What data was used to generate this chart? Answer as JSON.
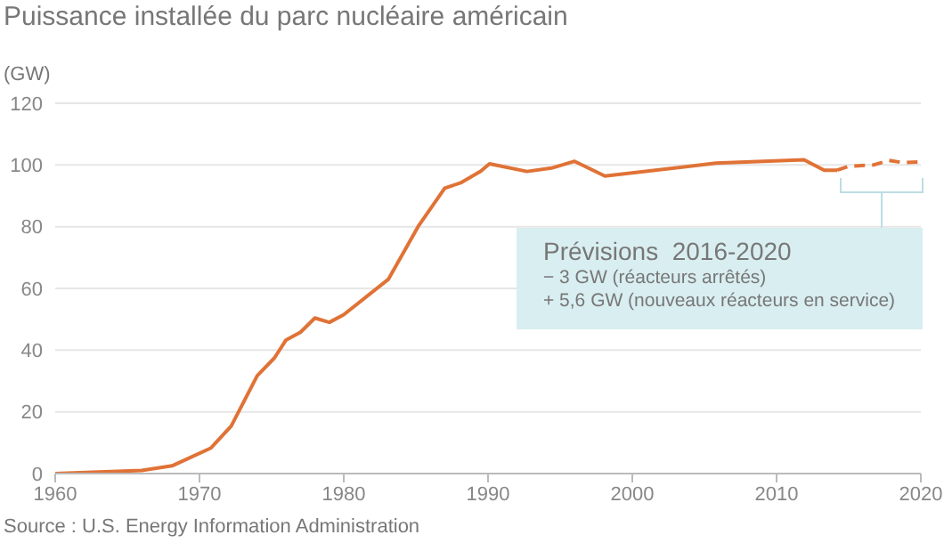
{
  "chart_data": {
    "type": "line",
    "title": "Puissance installée du parc nucléaire américain",
    "ylabel": "(GW)",
    "xlim": [
      1960,
      2020
    ],
    "xticks": [
      1960,
      1970,
      1980,
      1990,
      2000,
      2010,
      2020
    ],
    "ylim": [
      0,
      120
    ],
    "yticks": [
      0,
      20,
      40,
      60,
      80,
      100,
      120
    ],
    "grid": "y",
    "series": [
      {
        "color": "#e07236",
        "line_style": "solid",
        "x": [
          1960,
          1966,
          1968.1,
          1970.8,
          1972.2,
          1974,
          1975.2,
          1976,
          1977,
          1978,
          1979,
          1980,
          1983.1,
          1985.2,
          1987,
          1988.1,
          1989.5,
          1990.1,
          1992.7,
          1994.4,
          1996,
          1998.1,
          2005.8,
          2011.9,
          2013.3,
          2014.2
        ],
        "values": [
          0,
          1,
          2.5,
          8.3,
          15.4,
          31.7,
          37.5,
          43.3,
          45.8,
          50.4,
          49,
          51.5,
          63,
          80.4,
          92.5,
          94.2,
          98,
          100.4,
          97.9,
          99,
          101.2,
          96.4,
          100.6,
          101.7,
          98.3,
          98.3
        ]
      },
      {
        "color": "#e07236",
        "line_style": "dashed",
        "x": [
          2014.2,
          2015,
          2016.7,
          2017.8,
          2018.7,
          2020
        ],
        "values": [
          98.3,
          99.6,
          100,
          101.5,
          100.8,
          101
        ]
      }
    ],
    "annotations": [
      "Prévisions  2016-2020",
      "− 3 GW (réacteurs arrêtés)",
      "+ 5,6 GW (nouveaux réacteurs en service)",
      "Source : U.S. Energy Information Administration"
    ]
  }
}
